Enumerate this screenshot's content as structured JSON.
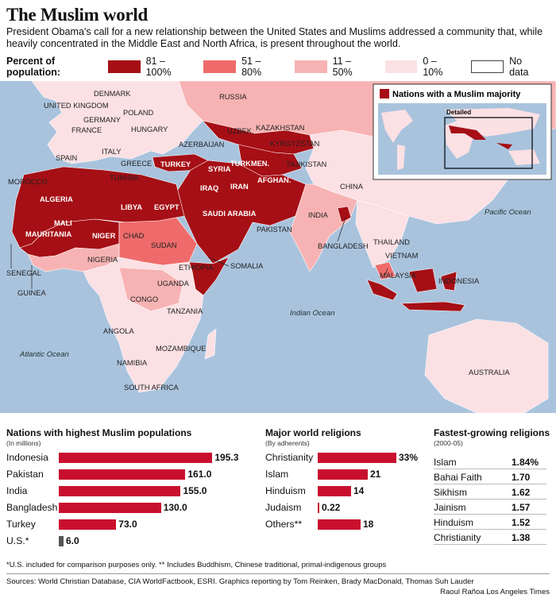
{
  "header": {
    "title": "The Muslim world",
    "subtitle": "President Obama's call for a new relationship between the United States and Muslims addressed a community that, while heavily concentrated in the Middle East and North Africa, is present throughout the world."
  },
  "legend": {
    "title": "Percent of population:",
    "items": [
      {
        "label": "81 – 100%",
        "color": "#a50f15"
      },
      {
        "label": "51 – 80%",
        "color": "#ef6b6b"
      },
      {
        "label": "11 – 50%",
        "color": "#f7b3b3"
      },
      {
        "label": "0 – 10%",
        "color": "#fbe0e4"
      },
      {
        "label": "No data",
        "color": "#ffffff"
      }
    ]
  },
  "map": {
    "inset_title": "Nations with a Muslim majority",
    "inset_detail": "Detailed",
    "oceans": [
      "Pacific Ocean",
      "Indian Ocean",
      "Atlantic Ocean"
    ],
    "labels": [
      "DENMARK",
      "RUSSIA",
      "UNITED KINGDOM",
      "POLAND",
      "GERMANY",
      "FRANCE",
      "HUNGARY",
      "UZBEK.",
      "KAZAKHSTAN",
      "AZERBAIJAN",
      "KYRGYZSTAN",
      "SPAIN",
      "ITALY",
      "GREECE",
      "TURKEY",
      "SYRIA",
      "TURKMEN.",
      "TAJIKISTAN",
      "MOROCCO",
      "TUNISIA",
      "IRAQ",
      "IRAN",
      "AFGHAN.",
      "CHINA",
      "ALGERIA",
      "LIBYA",
      "EGYPT",
      "SAUDI ARABIA",
      "MALI",
      "NIGER",
      "MAURITANIA",
      "CHAD",
      "SUDAN",
      "PAKISTAN",
      "INDIA",
      "BANGLADESH",
      "THAILAND",
      "VIETNAM",
      "SENEGAL",
      "GUINEA",
      "NIGERIA",
      "ETHIOPIA",
      "SOMALIA",
      "UGANDA",
      "MALAYSIA",
      "INDONESIA",
      "CONGO",
      "TANZANIA",
      "ANGOLA",
      "MOZAMBIQUE",
      "NAMIBIA",
      "SOUTH AFRICA",
      "AUSTRALIA"
    ]
  },
  "populations": {
    "title": "Nations with highest Muslim populations",
    "unit": "(In millions)",
    "rows": [
      {
        "name": "Indonesia",
        "value": 195.3,
        "label": "195.3"
      },
      {
        "name": "Pakistan",
        "value": 161.0,
        "label": "161.0"
      },
      {
        "name": "India",
        "value": 155.0,
        "label": "155.0"
      },
      {
        "name": "Bangladesh",
        "value": 130.0,
        "label": "130.0"
      },
      {
        "name": "Turkey",
        "value": 73.0,
        "label": "73.0"
      },
      {
        "name": "U.S.*",
        "value": 6.0,
        "label": "6.0"
      }
    ]
  },
  "religions": {
    "title": "Major world religions",
    "unit": "(By adherents)",
    "rows": [
      {
        "name": "Christianity",
        "value": 33,
        "label": "33%"
      },
      {
        "name": "Islam",
        "value": 21,
        "label": "21"
      },
      {
        "name": "Hinduism",
        "value": 14,
        "label": "14"
      },
      {
        "name": "Judaism",
        "value": 0.22,
        "label": "0.22"
      },
      {
        "name": "Others**",
        "value": 18,
        "label": "18"
      }
    ]
  },
  "fastest": {
    "title": "Fastest-growing religions",
    "unit": "(2000-05)",
    "rows": [
      {
        "name": "Islam",
        "value": "1.84%"
      },
      {
        "name": "Bahai Faith",
        "value": "1.70"
      },
      {
        "name": "Sikhism",
        "value": "1.62"
      },
      {
        "name": "Jainism",
        "value": "1.57"
      },
      {
        "name": "Hinduism",
        "value": "1.52"
      },
      {
        "name": "Christianity",
        "value": "1.38"
      }
    ]
  },
  "footer": {
    "note": "*U.S. included for comparison purposes only. ** Includes Buddhism, Chinese traditional, primal-indigenous groups",
    "sources": "Sources: World Christian Database, CIA WorldFactbook, ESRI. Graphics reporting by Tom Reinken, Brady MacDonald, Thomas Suh Lauder",
    "credit": "Raoul Rañoa Los Angeles Times"
  },
  "chart_data": [
    {
      "type": "bar",
      "title": "Nations with highest Muslim populations",
      "ylabel": "(In millions)",
      "categories": [
        "Indonesia",
        "Pakistan",
        "India",
        "Bangladesh",
        "Turkey",
        "U.S.*"
      ],
      "values": [
        195.3,
        161.0,
        155.0,
        130.0,
        73.0,
        6.0
      ]
    },
    {
      "type": "bar",
      "title": "Major world religions",
      "ylabel": "(By adherents)",
      "categories": [
        "Christianity",
        "Islam",
        "Hinduism",
        "Judaism",
        "Others**"
      ],
      "values": [
        33,
        21,
        14,
        0.22,
        18
      ]
    }
  ]
}
